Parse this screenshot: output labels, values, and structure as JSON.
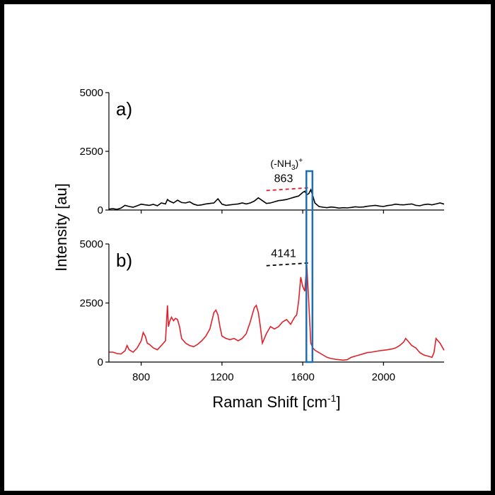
{
  "chart_data": {
    "type": "line",
    "xlabel": "Raman Shift [cm",
    "xlabel_sup": "-1",
    "xlabel_end": "]",
    "ylabel": "Intensity [au]",
    "xlim": [
      640,
      2300
    ],
    "x_ticks": [
      "800",
      "1200",
      "1600",
      "2000"
    ],
    "x_tick_values": [
      800,
      1200,
      1600,
      2000
    ],
    "highlight_color": "#1f6fb5",
    "highlight_range": [
      1618,
      1648
    ],
    "panels": [
      {
        "label": "a)",
        "ylim": [
          0,
          5000
        ],
        "y_ticks": [
          "0",
          "2500",
          "5000"
        ],
        "y_tick_values": [
          0,
          2500,
          5000
        ],
        "series": [
          {
            "color": "#000000",
            "x": [
              640,
              660,
              680,
              700,
              720,
              740,
              760,
              780,
              800,
              820,
              840,
              860,
              880,
              900,
              920,
              930,
              940,
              960,
              980,
              1000,
              1020,
              1040,
              1060,
              1080,
              1100,
              1120,
              1140,
              1160,
              1180,
              1200,
              1220,
              1240,
              1260,
              1280,
              1300,
              1320,
              1340,
              1360,
              1380,
              1400,
              1420,
              1440,
              1460,
              1480,
              1500,
              1520,
              1540,
              1560,
              1580,
              1600,
              1610,
              1620,
              1630,
              1640,
              1650,
              1660,
              1680,
              1700,
              1720,
              1740,
              1760,
              1780,
              1800,
              1820,
              1840,
              1860,
              1880,
              1900,
              1920,
              1940,
              1960,
              1980,
              2000,
              2020,
              2040,
              2060,
              2080,
              2100,
              2120,
              2140,
              2160,
              2180,
              2200,
              2220,
              2240,
              2260,
              2280,
              2300
            ],
            "y": [
              40,
              60,
              30,
              80,
              200,
              150,
              120,
              180,
              250,
              220,
              200,
              240,
              180,
              300,
              260,
              450,
              380,
              300,
              420,
              320,
              300,
              350,
              250,
              200,
              220,
              260,
              280,
              300,
              480,
              250,
              200,
              220,
              240,
              260,
              300,
              260,
              300,
              380,
              520,
              400,
              280,
              300,
              350,
              400,
              420,
              450,
              500,
              550,
              600,
              750,
              800,
              650,
              700,
              863,
              600,
              300,
              150,
              120,
              100,
              130,
              110,
              80,
              100,
              90,
              110,
              140,
              120,
              130,
              160,
              180,
              200,
              170,
              150,
              190,
              210,
              250,
              230,
              220,
              240,
              260,
              200,
              180,
              230,
              250,
              220,
              260,
              300,
              250
            ]
          }
        ],
        "annotation_peak": "863",
        "annotation_peak_value": 950,
        "annotation_line_color": "#e0202a",
        "annotation_label_main": "(-NH",
        "annotation_label_sub": "3",
        "annotation_label_end": ")",
        "annotation_label_sup": "+"
      },
      {
        "label": "b)",
        "ylim": [
          0,
          5000
        ],
        "y_ticks": [
          "0",
          "2500",
          "5000"
        ],
        "y_tick_values": [
          0,
          2500,
          5000
        ],
        "series": [
          {
            "color": "#e0202a",
            "x": [
              640,
              660,
              680,
              700,
              720,
              730,
              740,
              760,
              780,
              800,
              810,
              820,
              830,
              840,
              860,
              880,
              900,
              920,
              930,
              935,
              940,
              950,
              960,
              970,
              980,
              990,
              1000,
              1020,
              1040,
              1060,
              1080,
              1100,
              1120,
              1140,
              1160,
              1170,
              1180,
              1190,
              1200,
              1220,
              1240,
              1260,
              1280,
              1300,
              1320,
              1340,
              1350,
              1360,
              1370,
              1380,
              1390,
              1400,
              1420,
              1440,
              1460,
              1480,
              1500,
              1520,
              1540,
              1560,
              1570,
              1580,
              1590,
              1600,
              1610,
              1620,
              1630,
              1640,
              1650,
              1660,
              1680,
              1700,
              1720,
              1740,
              1760,
              1780,
              1800,
              1820,
              1840,
              1860,
              1880,
              1900,
              1920,
              1940,
              1960,
              1980,
              2000,
              2020,
              2040,
              2060,
              2080,
              2100,
              2110,
              2120,
              2140,
              2160,
              2180,
              2200,
              2220,
              2240,
              2250,
              2260,
              2280,
              2300
            ],
            "y": [
              420,
              420,
              360,
              340,
              480,
              700,
              520,
              420,
              600,
              900,
              1250,
              1100,
              800,
              750,
              600,
              520,
              700,
              900,
              2400,
              1500,
              1700,
              1900,
              1750,
              1850,
              1800,
              1500,
              1000,
              800,
              700,
              650,
              750,
              900,
              1100,
              1400,
              2100,
              2200,
              2000,
              1500,
              1100,
              1000,
              950,
              1000,
              900,
              1000,
              1200,
              1700,
              2000,
              2300,
              2400,
              2100,
              1500,
              800,
              1200,
              1500,
              1400,
              1500,
              1700,
              1800,
              1600,
              1900,
              2000,
              2600,
              3600,
              3200,
              3000,
              4141,
              2500,
              800,
              600,
              500,
              400,
              300,
              200,
              150,
              120,
              100,
              80,
              100,
              200,
              250,
              300,
              350,
              400,
              420,
              450,
              480,
              500,
              520,
              550,
              600,
              700,
              850,
              1000,
              900,
              700,
              600,
              400,
              300,
              250,
              200,
              400,
              1000,
              800,
              500
            ]
          }
        ],
        "annotation_peak": "4141",
        "annotation_peak_value": 4200,
        "annotation_line_color": "#000000"
      }
    ]
  }
}
